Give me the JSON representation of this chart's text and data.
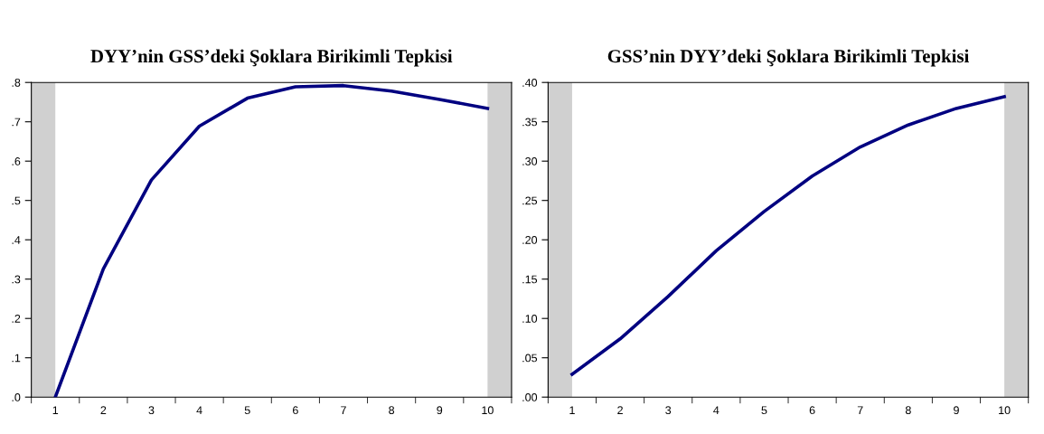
{
  "chart_data": [
    {
      "type": "line",
      "title": "DYY’nin GSS’deki Şoklara Birikimli Tepkisi",
      "x": [
        1,
        2,
        3,
        4,
        5,
        6,
        7,
        8,
        9,
        10
      ],
      "series": [
        {
          "color": "#000080",
          "values": [
            0.0,
            0.326,
            0.552,
            0.689,
            0.76,
            0.789,
            0.792,
            0.778,
            0.757,
            0.734
          ]
        }
      ],
      "xlim": [
        0.5,
        10.5
      ],
      "xticks": [
        {
          "value": 0.5,
          "label": null
        },
        1,
        {
          "value": 1.5,
          "label": null
        },
        2,
        {
          "value": 2.5,
          "label": null
        },
        3,
        {
          "value": 3.5,
          "label": null
        },
        4,
        {
          "value": 4.5,
          "label": null
        },
        5,
        {
          "value": 5.5,
          "label": null
        },
        6,
        {
          "value": 6.5,
          "label": null
        },
        7,
        {
          "value": 7.5,
          "label": null
        },
        8,
        {
          "value": 8.5,
          "label": null
        },
        9,
        {
          "value": 9.5,
          "label": null
        },
        10,
        {
          "value": 10.5,
          "label": null
        }
      ],
      "ylim": [
        0,
        0.8
      ],
      "yticks": [
        {
          "value": 0,
          "label": ".0"
        },
        {
          "value": 0.1,
          "label": ".1"
        },
        {
          "value": 0.2,
          "label": ".2"
        },
        {
          "value": 0.3,
          "label": ".3"
        },
        {
          "value": 0.4,
          "label": ".4"
        },
        {
          "value": 0.5,
          "label": ".5"
        },
        {
          "value": 0.6,
          "label": ".6"
        },
        {
          "value": 0.7,
          "label": ".7"
        },
        {
          "value": 0.8,
          "label": ".8"
        }
      ],
      "bands": [
        {
          "axis": "x",
          "from": 0.5,
          "to": 1,
          "color": "#d0d0d0"
        },
        {
          "axis": "x",
          "from": 10,
          "to": 10.5,
          "color": "#d0d0d0"
        }
      ],
      "grid": false,
      "legend": false,
      "line_style": "solid"
    },
    {
      "type": "line",
      "title": "GSS’nin DYY’deki Şoklara Birikimli Tepkisi",
      "x": [
        1,
        2,
        3,
        4,
        5,
        6,
        7,
        8,
        9,
        10
      ],
      "series": [
        {
          "color": "#000080",
          "values": [
            0.029,
            0.074,
            0.128,
            0.186,
            0.236,
            0.281,
            0.318,
            0.346,
            0.367,
            0.382
          ]
        }
      ],
      "xlim": [
        0.5,
        10.5
      ],
      "xticks": [
        {
          "value": 0.5,
          "label": null
        },
        1,
        {
          "value": 1.5,
          "label": null
        },
        2,
        {
          "value": 2.5,
          "label": null
        },
        3,
        {
          "value": 3.5,
          "label": null
        },
        4,
        {
          "value": 4.5,
          "label": null
        },
        5,
        {
          "value": 5.5,
          "label": null
        },
        6,
        {
          "value": 6.5,
          "label": null
        },
        7,
        {
          "value": 7.5,
          "label": null
        },
        8,
        {
          "value": 8.5,
          "label": null
        },
        9,
        {
          "value": 9.5,
          "label": null
        },
        10,
        {
          "value": 10.5,
          "label": null
        }
      ],
      "ylim": [
        0,
        0.4
      ],
      "yticks": [
        {
          "value": 0,
          "label": ".00"
        },
        {
          "value": 0.05,
          "label": ".05"
        },
        {
          "value": 0.1,
          "label": ".10"
        },
        {
          "value": 0.15,
          "label": ".15"
        },
        {
          "value": 0.2,
          "label": ".20"
        },
        {
          "value": 0.25,
          "label": ".25"
        },
        {
          "value": 0.3,
          "label": ".30"
        },
        {
          "value": 0.35,
          "label": ".35"
        },
        {
          "value": 0.4,
          "label": ".40"
        }
      ],
      "bands": [
        {
          "axis": "x",
          "from": 0.5,
          "to": 1,
          "color": "#d0d0d0"
        },
        {
          "axis": "x",
          "from": 10,
          "to": 10.5,
          "color": "#d0d0d0"
        }
      ],
      "grid": false,
      "legend": false,
      "line_style": "solid"
    }
  ]
}
